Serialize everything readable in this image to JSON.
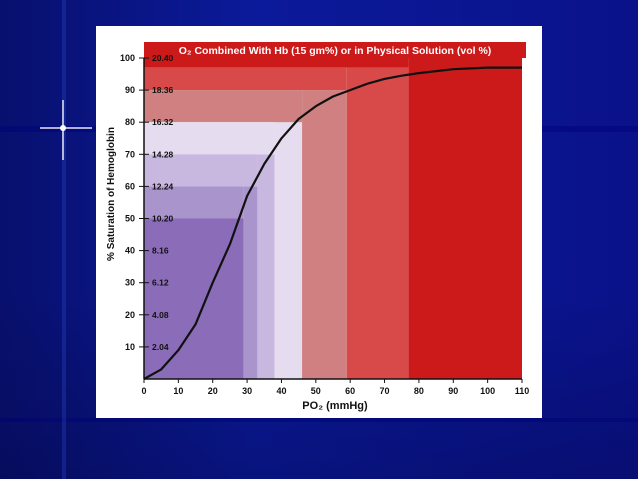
{
  "colors": {
    "background": "#0a0f8f",
    "title_bar": "#cc1a1a",
    "curve": "#111111"
  },
  "chart_data": {
    "type": "line",
    "title": "O₂ Combined With Hb (15 gm%) or in Physical Solution (vol %)",
    "xlabel": "PO₂ (mmHg)",
    "ylabel": "% Saturation of Hemoglobin",
    "xlim": [
      0,
      110
    ],
    "ylim": [
      0,
      100
    ],
    "x_ticks": [
      0,
      10,
      20,
      30,
      40,
      50,
      60,
      70,
      80,
      90,
      100,
      110
    ],
    "y_ticks": [
      10,
      20,
      30,
      40,
      50,
      60,
      70,
      80,
      90,
      100
    ],
    "vol_percent_labels": [
      "2.04",
      "4.08",
      "6.12",
      "8.16",
      "10.20",
      "12.24",
      "14.28",
      "16.32",
      "18.36",
      "20.40"
    ],
    "grid": false,
    "series": [
      {
        "values": [
          [
            0,
            0
          ],
          [
            5,
            3
          ],
          [
            10,
            9
          ],
          [
            15,
            17
          ],
          [
            20,
            30
          ],
          [
            25,
            42
          ],
          [
            27,
            48
          ],
          [
            30,
            57
          ],
          [
            35,
            67
          ],
          [
            40,
            75
          ],
          [
            45,
            81
          ],
          [
            50,
            85
          ],
          [
            55,
            88
          ],
          [
            60,
            90
          ],
          [
            65,
            92
          ],
          [
            70,
            93.5
          ],
          [
            75,
            94.5
          ],
          [
            80,
            95.3
          ],
          [
            90,
            96.5
          ],
          [
            100,
            97
          ],
          [
            110,
            97
          ]
        ]
      }
    ],
    "color_bands": [
      {
        "x_from": 0,
        "x_to": 29,
        "y_to": 50,
        "color": "#8a6cb8"
      },
      {
        "x_from": 29,
        "x_to": 33,
        "y_to": 60,
        "color": "#a994cc"
      },
      {
        "x_from": 33,
        "x_to": 38,
        "y_to": 70,
        "color": "#c8b8e0"
      },
      {
        "x_from": 38,
        "x_to": 46,
        "y_to": 80,
        "color": "#e6dcef"
      },
      {
        "x_from": 46,
        "x_to": 59,
        "y_to": 90,
        "color": "#d08080"
      },
      {
        "x_from": 59,
        "x_to": 77,
        "y_to": 97,
        "color": "#d84a4a"
      },
      {
        "x_from": 77,
        "x_to": 110,
        "y_to": 100,
        "color": "#cc1a1a"
      }
    ]
  }
}
